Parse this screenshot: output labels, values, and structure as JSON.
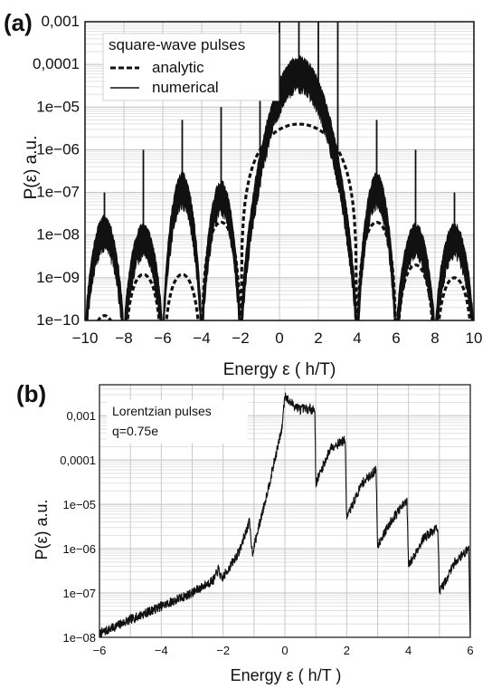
{
  "chart_data": [
    {
      "panel": "(a)",
      "type": "line",
      "xlabel": "Energy ε  ( h/T)",
      "ylabel": "P(ε)  a.u.",
      "xlim": [
        -10,
        10
      ],
      "ylim": [
        1e-10,
        0.001
      ],
      "yscale": "log",
      "grid": true,
      "x_ticks": [
        "−10",
        "−8",
        "−6",
        "−4",
        "−2",
        "0",
        "2",
        "4",
        "6",
        "8",
        "10"
      ],
      "y_ticks": [
        "1e−10",
        "1e−09",
        "1e−08",
        "1e−07",
        "1e−06",
        "1e−05",
        "0,0001",
        "0,001"
      ],
      "legend_title": "square-wave pulses",
      "legend_position": "top-left",
      "series": [
        {
          "name": "analytic",
          "style": "dashed",
          "lobes": [
            {
              "from": -10,
              "to": -8,
              "peak_x": -9,
              "peak_y": 1.3e-10
            },
            {
              "from": -8,
              "to": -6,
              "peak_x": -7,
              "peak_y": 1.2e-09
            },
            {
              "from": -6,
              "to": -4,
              "peak_x": -5,
              "peak_y": 1.2e-09
            },
            {
              "from": -4,
              "to": -2,
              "peak_x": -3,
              "peak_y": 2e-08
            },
            {
              "from": -2,
              "to": 4,
              "peak_x": 1,
              "peak_y": 4e-06
            },
            {
              "from": 4,
              "to": 6,
              "peak_x": 5,
              "peak_y": 2e-08
            },
            {
              "from": 6,
              "to": 8,
              "peak_x": 7,
              "peak_y": 2e-09
            },
            {
              "from": 8,
              "to": 10,
              "peak_x": 9,
              "peak_y": 1e-09
            }
          ]
        },
        {
          "name": "numerical",
          "style": "solid",
          "lobes": [
            {
              "from": -10,
              "to": -8,
              "peak_x": -9,
              "peak_y": 1.5e-08
            },
            {
              "from": -8,
              "to": -6,
              "peak_x": -7,
              "peak_y": 1e-08
            },
            {
              "from": -6,
              "to": -4,
              "peak_x": -5,
              "peak_y": 1.5e-07
            },
            {
              "from": -4,
              "to": -2,
              "peak_x": -3,
              "peak_y": 1e-07
            },
            {
              "from": -2,
              "to": 4,
              "peak_x": 1,
              "peak_y": 8e-05
            },
            {
              "from": 4,
              "to": 6,
              "peak_x": 5,
              "peak_y": 1.5e-07
            },
            {
              "from": 6,
              "to": 8,
              "peak_x": 7,
              "peak_y": 1e-08
            },
            {
              "from": 8,
              "to": 10,
              "peak_x": 9,
              "peak_y": 1e-08
            }
          ],
          "spikes": [
            {
              "x": -9,
              "y": 1e-07
            },
            {
              "x": -7,
              "y": 1e-06
            },
            {
              "x": -5,
              "y": 5e-06
            },
            {
              "x": -3,
              "y": 1e-05
            },
            {
              "x": -1,
              "y": 2e-05
            },
            {
              "x": 0,
              "y": 0.001
            },
            {
              "x": 1,
              "y": 0.001
            },
            {
              "x": 2,
              "y": 0.001
            },
            {
              "x": 3,
              "y": 0.001
            },
            {
              "x": 5,
              "y": 5e-06
            },
            {
              "x": 7,
              "y": 1e-06
            },
            {
              "x": 9,
              "y": 1e-07
            }
          ]
        }
      ]
    },
    {
      "panel": "(b)",
      "type": "line",
      "xlabel": "Energy ε  ( h/T )",
      "ylabel": "P(ε)  a.u.",
      "xlim": [
        -6,
        6
      ],
      "ylim": [
        1e-08,
        0.005
      ],
      "yscale": "log",
      "grid": true,
      "x_ticks": [
        "−6",
        "−4",
        "−2",
        "0",
        "2",
        "4",
        "6"
      ],
      "y_ticks": [
        "1e−08",
        "1e−07",
        "1e−06",
        "1e−05",
        "0,0001",
        "0,001"
      ],
      "annotations": [
        "Lorentzian pulses",
        "q=0.75e"
      ],
      "annotation_position": "top-left",
      "series": [
        {
          "name": "",
          "points": [
            [
              -6,
              1.2e-08
            ],
            [
              -5,
              2.5e-08
            ],
            [
              -4,
              5e-08
            ],
            [
              -3,
              1e-07
            ],
            [
              -2.3,
              2e-07
            ],
            [
              -2.15,
              3.5e-07
            ],
            [
              -2.05,
              2e-07
            ],
            [
              -1.5,
              8e-07
            ],
            [
              -1.15,
              4e-06
            ],
            [
              -1.05,
              8e-07
            ],
            [
              -0.5,
              3e-05
            ],
            [
              -0.1,
              0.0005
            ],
            [
              0,
              0.003
            ],
            [
              0.15,
              0.002
            ],
            [
              0.5,
              0.0014
            ],
            [
              0.97,
              0.0014
            ],
            [
              1.0,
              3e-05
            ],
            [
              1.5,
              0.0002
            ],
            [
              1.95,
              0.00028
            ],
            [
              2.0,
              5e-06
            ],
            [
              2.5,
              3e-05
            ],
            [
              2.95,
              6e-05
            ],
            [
              3.0,
              1.2e-06
            ],
            [
              3.5,
              5e-06
            ],
            [
              3.95,
              1.2e-05
            ],
            [
              4.0,
              4e-07
            ],
            [
              4.5,
              1.8e-06
            ],
            [
              4.95,
              3e-06
            ],
            [
              5.0,
              1e-07
            ],
            [
              5.5,
              5e-07
            ],
            [
              5.95,
              1e-06
            ],
            [
              6.0,
              1e-08
            ]
          ]
        }
      ]
    }
  ]
}
